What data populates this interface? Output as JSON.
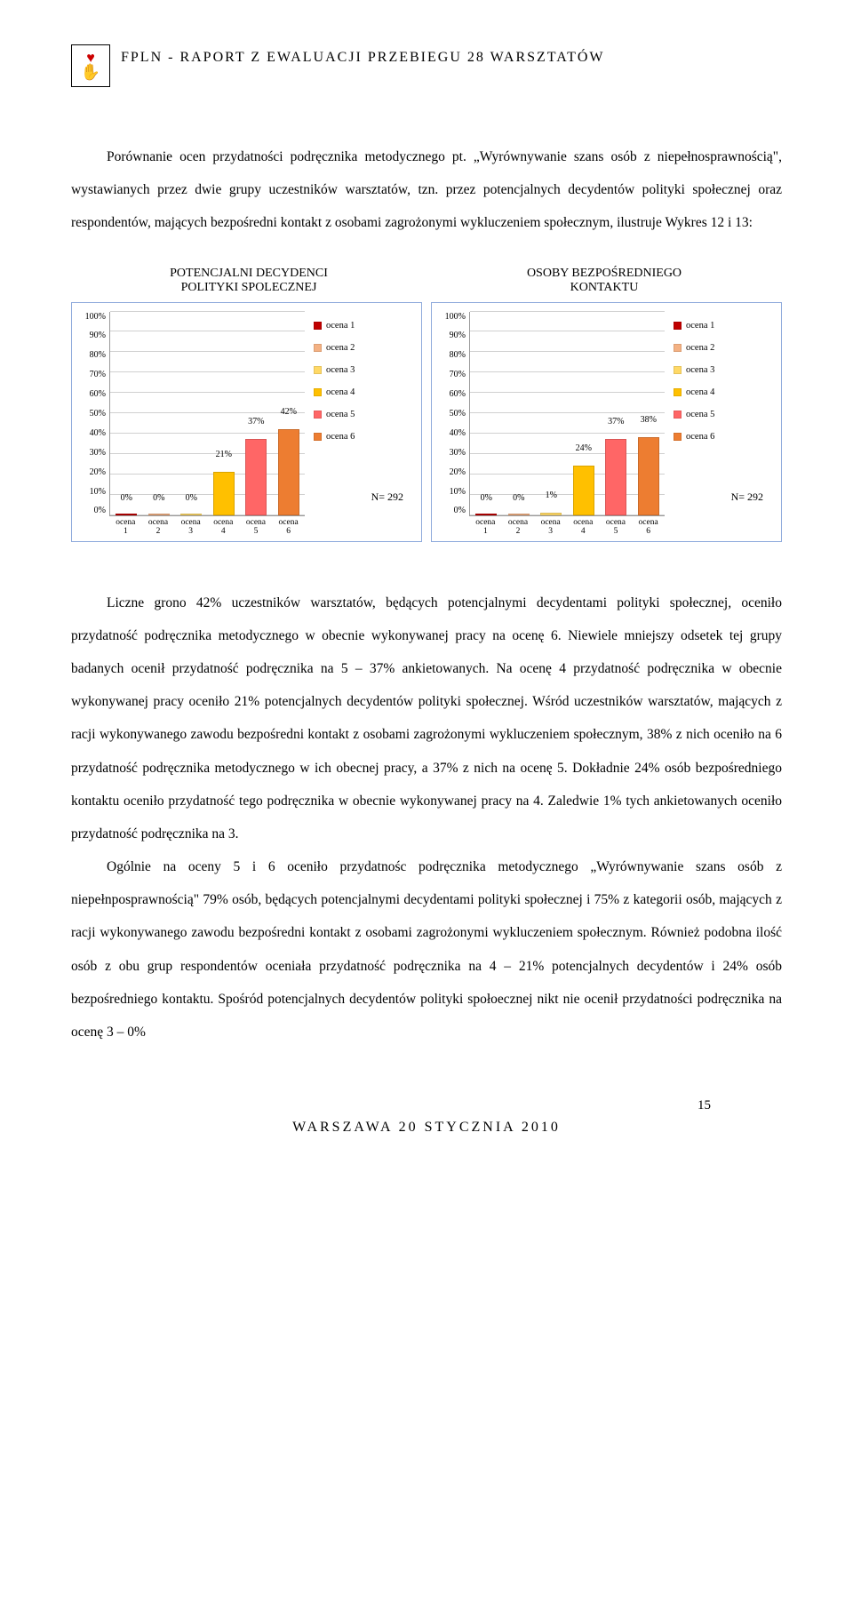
{
  "header": {
    "title": "FPLN - RAPORT Z EWALUACJI PRZEBIEGU 28 WARSZTATÓW"
  },
  "paragraphs": {
    "p1": "Porównanie ocen przydatności podręcznika metodycznego pt. „Wyrównywanie szans osób z niepełnosprawnością\", wystawianych przez dwie grupy uczestników warsztatów, tzn. przez potencjalnych decydentów polityki społecznej oraz respondentów, mających bezpośredni kontakt z osobami zagrożonymi wykluczeniem społecznym, ilustruje Wykres 12 i 13:",
    "p2": "Liczne grono 42% uczestników warsztatów, będących potencjalnymi decydentami polityki społecznej, oceniło przydatność podręcznika metodycznego w obecnie wykonywanej pracy na ocenę 6. Niewiele mniejszy odsetek tej grupy badanych ocenił przydatność podręcznika na 5 – 37% ankietowanych. Na ocenę 4 przydatność podręcznika w obecnie wykonywanej pracy oceniło 21% potencjalnych decydentów polityki społecznej. Wśród uczestników warsztatów, mających z racji wykonywanego zawodu bezpośredni kontakt z osobami zagrożonymi wykluczeniem społecznym, 38% z nich oceniło na 6 przydatność podręcznika metodycznego w ich obecnej pracy, a 37% z nich na ocenę 5. Dokładnie 24% osób bezpośredniego kontaktu oceniło przydatność tego podręcznika w obecnie wykonywanej pracy na 4. Zaledwie 1% tych ankietowanych oceniło przydatność podręcznika na 3.",
    "p3": "Ogólnie na oceny 5 i 6 oceniło przydatnośc podręcznika metodycznego „Wyrównywanie szans osób z niepełnposprawnością\" 79% osób, będących potencjalnymi decydentami polityki społecznej i 75% z kategorii osób, mających z racji wykonywanego zawodu bezpośredni kontakt z osobami zagrożonymi wykluczeniem społecznym. Również podobna ilość osób z obu grup respondentów oceniała przydatność podręcznika na 4 – 21% potencjalnych decydentów i 24% osób bezpośredniego kontaktu. Spośród potencjalnych decydentów polityki społoecznej nikt nie ocenił przydatności podręcznika na ocenę 3 – 0%"
  },
  "charts": {
    "left": {
      "title_line1": "POTENCJALNI DECYDENCI",
      "title_line2": "POLITYKI SPOLECZNEJ",
      "y_ticks": [
        "100%",
        "90%",
        "80%",
        "70%",
        "60%",
        "50%",
        "40%",
        "30%",
        "20%",
        "10%",
        "0%"
      ],
      "categories": [
        "ocena 1",
        "ocena 2",
        "ocena 3",
        "ocena 4",
        "ocena 5",
        "ocena 6"
      ],
      "values": [
        0,
        0,
        0,
        21,
        37,
        42
      ],
      "bar_labels": [
        "0%",
        "0%",
        "0%",
        "21%",
        "37%",
        "42%"
      ],
      "bar_colors": [
        "#c00000",
        "#f4b183",
        "#ffd966",
        "#ffc000",
        "#ff6666",
        "#ed7d31"
      ],
      "n": "N= 292"
    },
    "right": {
      "title_line1": "OSOBY BEZPOŚREDNIEGO",
      "title_line2": "KONTAKTU",
      "y_ticks": [
        "100%",
        "90%",
        "80%",
        "70%",
        "60%",
        "50%",
        "40%",
        "30%",
        "20%",
        "10%",
        "0%"
      ],
      "categories": [
        "ocena 1",
        "ocena 2",
        "ocena 3",
        "ocena 4",
        "ocena 5",
        "ocena 6"
      ],
      "values": [
        0,
        0,
        1,
        24,
        37,
        38
      ],
      "bar_labels": [
        "0%",
        "0%",
        "1%",
        "24%",
        "37%",
        "38%"
      ],
      "bar_colors": [
        "#c00000",
        "#f4b183",
        "#ffd966",
        "#ffc000",
        "#ff6666",
        "#ed7d31"
      ],
      "n": "N= 292"
    },
    "legend": {
      "items": [
        "ocena 1",
        "ocena 2",
        "ocena 3",
        "ocena 4",
        "ocena 5",
        "ocena 6"
      ],
      "colors": [
        "#c00000",
        "#f4b183",
        "#ffd966",
        "#ffc000",
        "#ff6666",
        "#ed7d31"
      ]
    },
    "ymax": 100,
    "grid_color": "#d0d0d0",
    "border_color": "#8faadc"
  },
  "footer": {
    "text": "WARSZAWA 20 STYCZNIA 2010",
    "page": "15"
  }
}
